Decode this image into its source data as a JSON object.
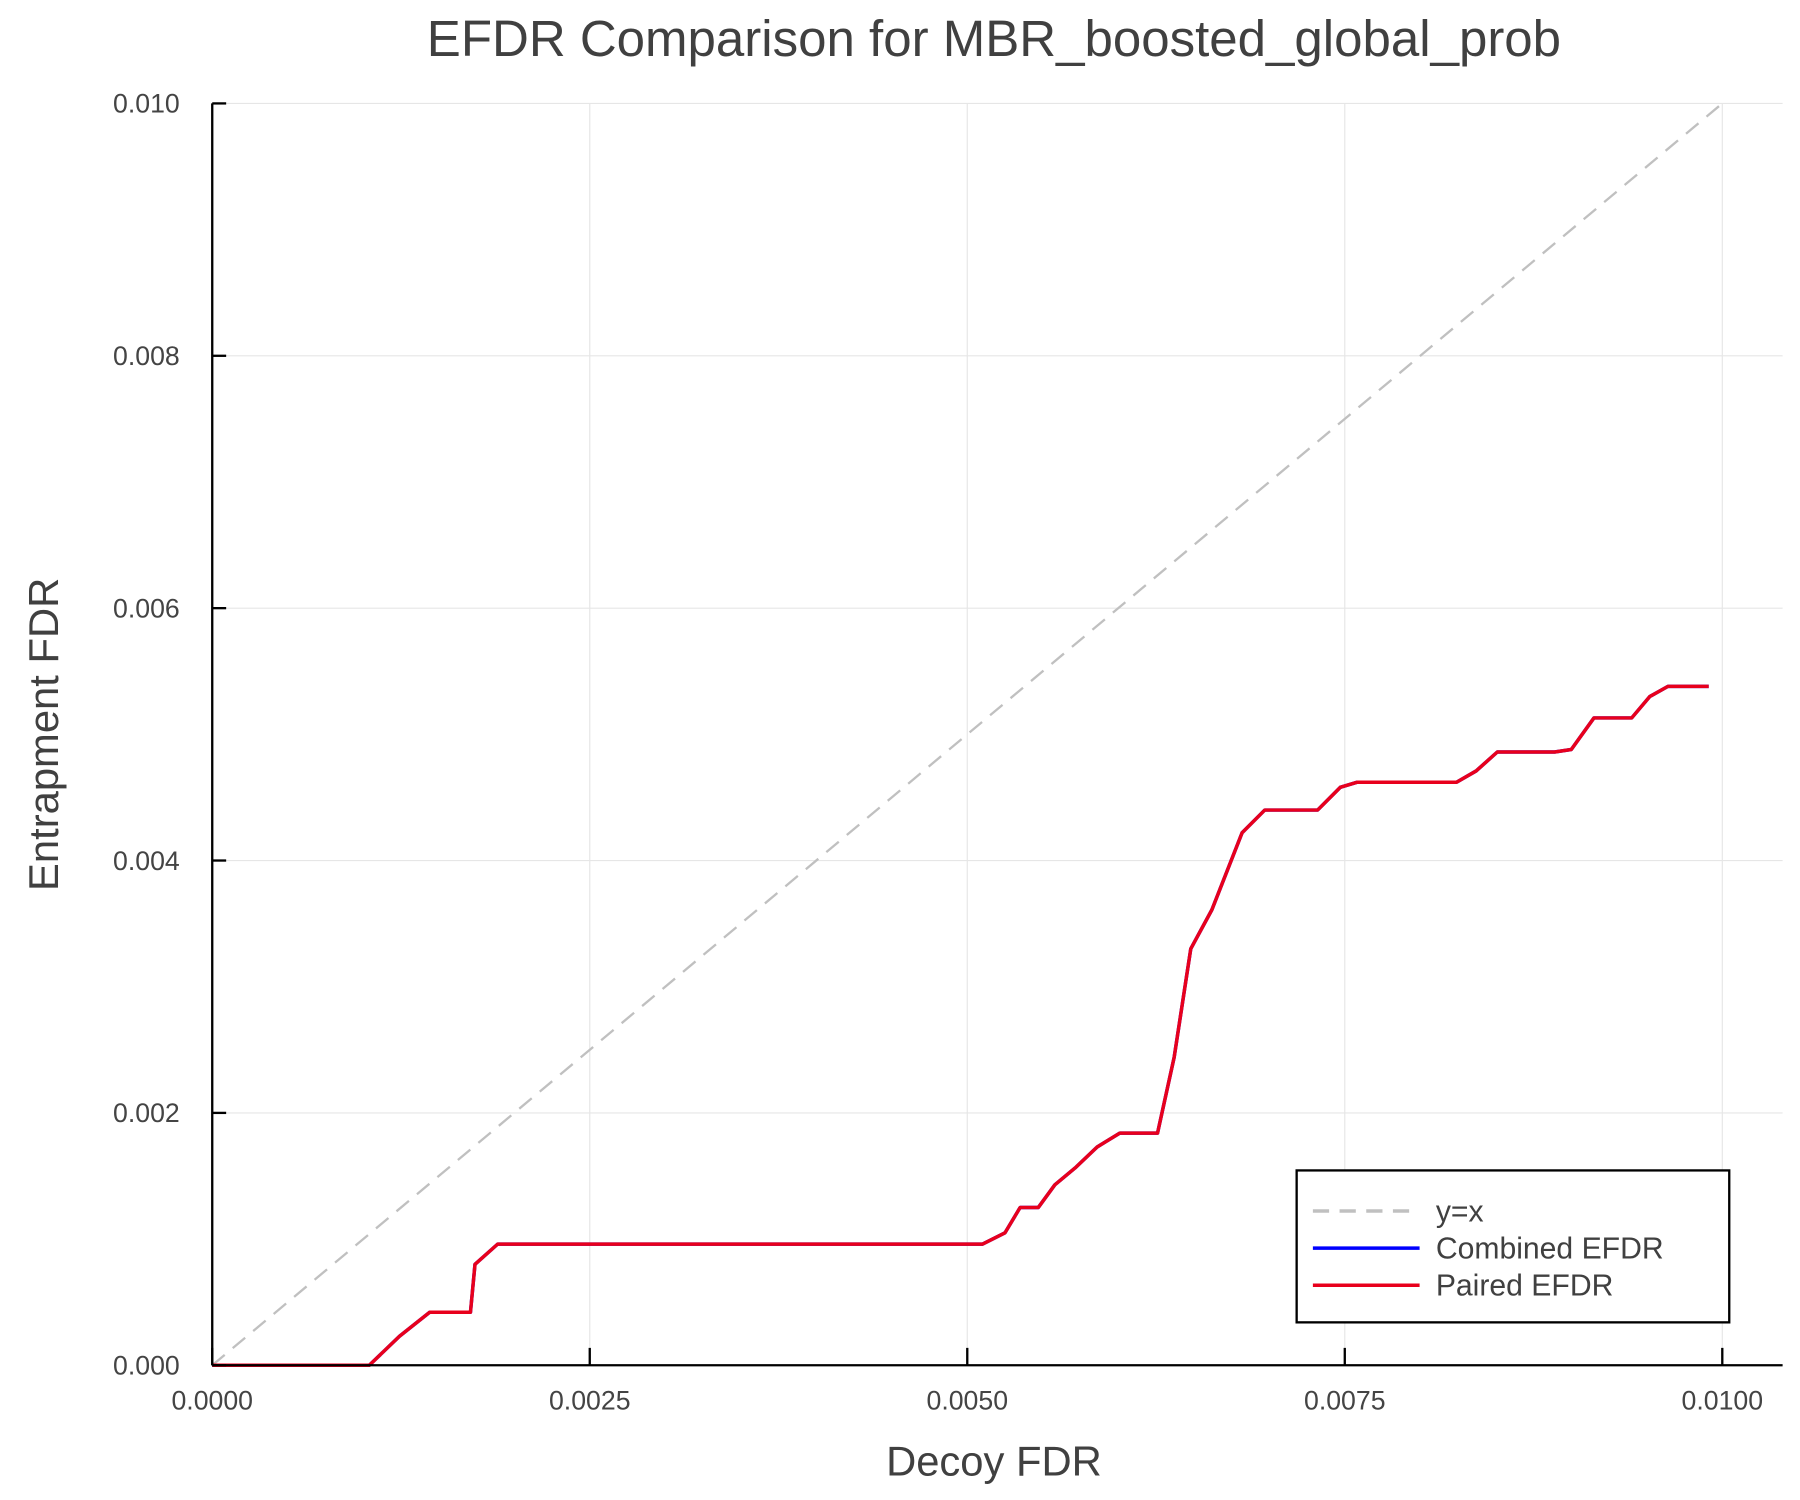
{
  "chart_data": {
    "type": "line",
    "title": "EFDR Comparison for MBR_boosted_global_prob",
    "xlabel": "Decoy FDR",
    "ylabel": "Entrapment FDR",
    "xlim": [
      0,
      0.0104
    ],
    "ylim": [
      0,
      0.01
    ],
    "grid": true,
    "legend_position": "bottom-right",
    "xticks": [
      0,
      0.0025,
      0.005,
      0.0075,
      0.01
    ],
    "xtick_labels": [
      "0.0000",
      "0.0025",
      "0.0050",
      "0.0075",
      "0.0100"
    ],
    "yticks": [
      0,
      0.002,
      0.004,
      0.006,
      0.008,
      0.01
    ],
    "ytick_labels": [
      "0.000",
      "0.002",
      "0.004",
      "0.006",
      "0.008",
      "0.010"
    ],
    "series": [
      {
        "name": "y=x",
        "color": "#c0c0c0",
        "style": "dashed",
        "x": [
          0,
          0.01
        ],
        "y": [
          0,
          0.01
        ]
      },
      {
        "name": "Combined EFDR",
        "color": "#0000ff",
        "style": "solid",
        "x": [
          0,
          0.00104,
          0.00124,
          0.00144,
          0.00171,
          0.00174,
          0.00189,
          0.0051,
          0.00525,
          0.00535,
          0.00547,
          0.00558,
          0.00572,
          0.00586,
          0.00601,
          0.00626,
          0.00637,
          0.00648,
          0.00662,
          0.00682,
          0.00697,
          0.00732,
          0.00747,
          0.00758,
          0.00824,
          0.00837,
          0.00851,
          0.00889,
          0.009,
          0.00915,
          0.0094,
          0.00952,
          0.00964,
          0.00991
        ],
        "y": [
          0,
          0,
          0.00023,
          0.00042,
          0.00042,
          0.0008,
          0.00096,
          0.00096,
          0.00105,
          0.00125,
          0.00125,
          0.00143,
          0.00157,
          0.00173,
          0.00184,
          0.00184,
          0.00244,
          0.0033,
          0.00361,
          0.00422,
          0.0044,
          0.0044,
          0.00458,
          0.00462,
          0.00462,
          0.00471,
          0.00486,
          0.00486,
          0.00488,
          0.00513,
          0.00513,
          0.0053,
          0.00538,
          0.00538
        ]
      },
      {
        "name": "Paired EFDR",
        "color": "#e8001c",
        "style": "solid",
        "x": [
          0,
          0.00104,
          0.00124,
          0.00144,
          0.00171,
          0.00174,
          0.00189,
          0.0051,
          0.00525,
          0.00535,
          0.00547,
          0.00558,
          0.00572,
          0.00586,
          0.00601,
          0.00626,
          0.00637,
          0.00648,
          0.00662,
          0.00682,
          0.00697,
          0.00732,
          0.00747,
          0.00758,
          0.00824,
          0.00837,
          0.00851,
          0.00889,
          0.009,
          0.00915,
          0.0094,
          0.00952,
          0.00964,
          0.00991
        ],
        "y": [
          0,
          0,
          0.00023,
          0.00042,
          0.00042,
          0.0008,
          0.00096,
          0.00096,
          0.00105,
          0.00125,
          0.00125,
          0.00143,
          0.00157,
          0.00173,
          0.00184,
          0.00184,
          0.00244,
          0.0033,
          0.00361,
          0.00422,
          0.0044,
          0.0044,
          0.00458,
          0.00462,
          0.00462,
          0.00471,
          0.00486,
          0.00486,
          0.00488,
          0.00513,
          0.00513,
          0.0053,
          0.00538,
          0.00538
        ]
      }
    ]
  }
}
